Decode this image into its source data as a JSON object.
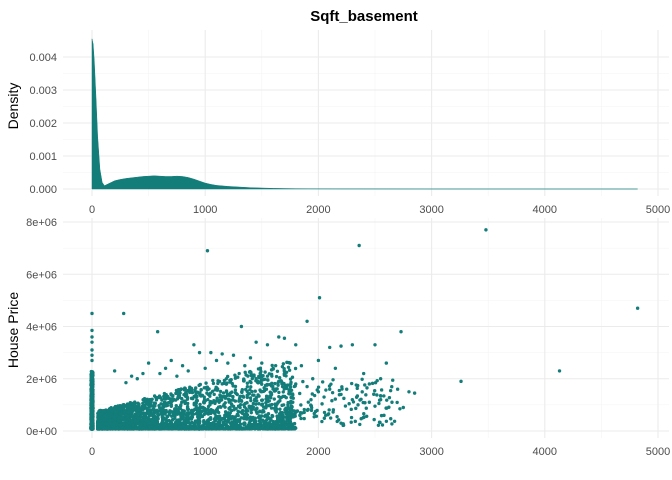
{
  "chart_data": [
    {
      "type": "area",
      "title": "Sqft_basement",
      "xlabel": "",
      "ylabel": "Density",
      "xlim": [
        0,
        4820
      ],
      "ylim": [
        0,
        0.0046
      ],
      "x_ticks": [
        0,
        1000,
        2000,
        3000,
        4000,
        5000
      ],
      "y_ticks": [
        0.0,
        0.001,
        0.002,
        0.003,
        0.004
      ],
      "y_tick_labels": [
        "0.000",
        "0.001",
        "0.002",
        "0.003",
        "0.004"
      ],
      "grid": true,
      "color": "#137d7a",
      "x": [
        0,
        10,
        20,
        35,
        50,
        70,
        90,
        110,
        140,
        170,
        200,
        250,
        300,
        350,
        400,
        450,
        500,
        550,
        600,
        650,
        700,
        750,
        800,
        850,
        900,
        950,
        1000,
        1050,
        1100,
        1200,
        1300,
        1400,
        1500,
        1600,
        1700,
        1800,
        1900,
        2000,
        2200,
        2400,
        2600,
        2800,
        3000,
        3500,
        4000,
        4500,
        4820
      ],
      "y": [
        0.00455,
        0.0044,
        0.0039,
        0.0028,
        0.0016,
        0.0006,
        0.0002,
        0.0001,
        0.00015,
        0.0002,
        0.00025,
        0.00029,
        0.00032,
        0.00034,
        0.00036,
        0.00038,
        0.00039,
        0.0004,
        0.00039,
        0.00038,
        0.00038,
        0.00039,
        0.00038,
        0.00035,
        0.0003,
        0.00024,
        0.00018,
        0.00014,
        0.00011,
        8e-05,
        6e-05,
        4e-05,
        3e-05,
        2e-05,
        1.5e-05,
        1e-05,
        8e-06,
        6e-06,
        4e-06,
        3e-06,
        2e-06,
        1.5e-06,
        1e-06,
        5e-07,
        3e-07,
        2e-07,
        1e-07
      ]
    },
    {
      "type": "scatter",
      "title": "",
      "xlabel": "",
      "ylabel": "House Price",
      "xlim": [
        0,
        4820
      ],
      "ylim": [
        0,
        8000000
      ],
      "x_ticks": [
        0,
        1000,
        2000,
        3000,
        4000,
        5000
      ],
      "y_ticks": [
        0,
        2000000,
        4000000,
        6000000,
        8000000
      ],
      "y_tick_labels": [
        "0e+00",
        "2e+06",
        "4e+06",
        "6e+06",
        "8e+06"
      ],
      "grid": true,
      "color": "#137d7a",
      "points": [
        [
          0,
          4500000
        ],
        [
          0,
          3850000
        ],
        [
          0,
          3600000
        ],
        [
          0,
          3400000
        ],
        [
          0,
          3100000
        ],
        [
          0,
          2900000
        ],
        [
          0,
          2700000
        ],
        [
          280,
          4500000
        ],
        [
          1020,
          6900000
        ],
        [
          2360,
          7100000
        ],
        [
          3480,
          7700000
        ],
        [
          4820,
          4700000
        ],
        [
          2010,
          5100000
        ],
        [
          1900,
          4200000
        ],
        [
          1320,
          4000000
        ],
        [
          580,
          3800000
        ],
        [
          2730,
          3800000
        ],
        [
          1650,
          3600000
        ],
        [
          1700,
          3550000
        ],
        [
          1450,
          3400000
        ],
        [
          1550,
          3300000
        ],
        [
          1800,
          3300000
        ],
        [
          2100,
          3200000
        ],
        [
          2200,
          3250000
        ],
        [
          2300,
          3300000
        ],
        [
          2500,
          3300000
        ],
        [
          900,
          3300000
        ],
        [
          950,
          3000000
        ],
        [
          1050,
          3000000
        ],
        [
          1150,
          2950000
        ],
        [
          1250,
          2900000
        ],
        [
          1850,
          2500000
        ],
        [
          2000,
          2700000
        ],
        [
          2150,
          2400000
        ],
        [
          2400,
          2200000
        ],
        [
          2550,
          2000000
        ],
        [
          2600,
          2600000
        ],
        [
          2700,
          1600000
        ],
        [
          2800,
          1500000
        ],
        [
          2850,
          1450000
        ],
        [
          3260,
          1900000
        ],
        [
          4130,
          2300000
        ],
        [
          2720,
          850000
        ],
        [
          2450,
          1800000
        ],
        [
          2250,
          1600000
        ],
        [
          2050,
          1300000
        ],
        [
          1950,
          2000000
        ],
        [
          300,
          1850000
        ],
        [
          350,
          2100000
        ],
        [
          500,
          2600000
        ],
        [
          700,
          2700000
        ],
        [
          800,
          2500000
        ],
        [
          1100,
          2700000
        ],
        [
          1200,
          2600000
        ],
        [
          1350,
          2500000
        ],
        [
          1400,
          2800000
        ],
        [
          1500,
          2600000
        ],
        [
          1600,
          2400000
        ],
        [
          1700,
          2200000
        ],
        [
          1750,
          2600000
        ],
        [
          200,
          2300000
        ],
        [
          450,
          2200000
        ],
        [
          650,
          2400000
        ],
        [
          600,
          2200000
        ],
        [
          400,
          2000000
        ],
        [
          750,
          2100000
        ],
        [
          850,
          2300000
        ],
        [
          1000,
          2400000
        ],
        [
          1300,
          2200000
        ],
        [
          1450,
          2000000
        ],
        [
          1550,
          2100000
        ],
        [
          1650,
          1900000
        ],
        [
          1800,
          1800000
        ],
        [
          1900,
          1700000
        ],
        [
          2000,
          1500000
        ],
        [
          2100,
          1600000
        ],
        [
          2200,
          1400000
        ],
        [
          2300,
          1200000
        ],
        [
          2350,
          1000000
        ],
        [
          2450,
          1100000
        ],
        [
          2500,
          950000
        ],
        [
          2550,
          1200000
        ],
        [
          2650,
          1100000
        ],
        [
          2750,
          900000
        ]
      ]
    }
  ]
}
